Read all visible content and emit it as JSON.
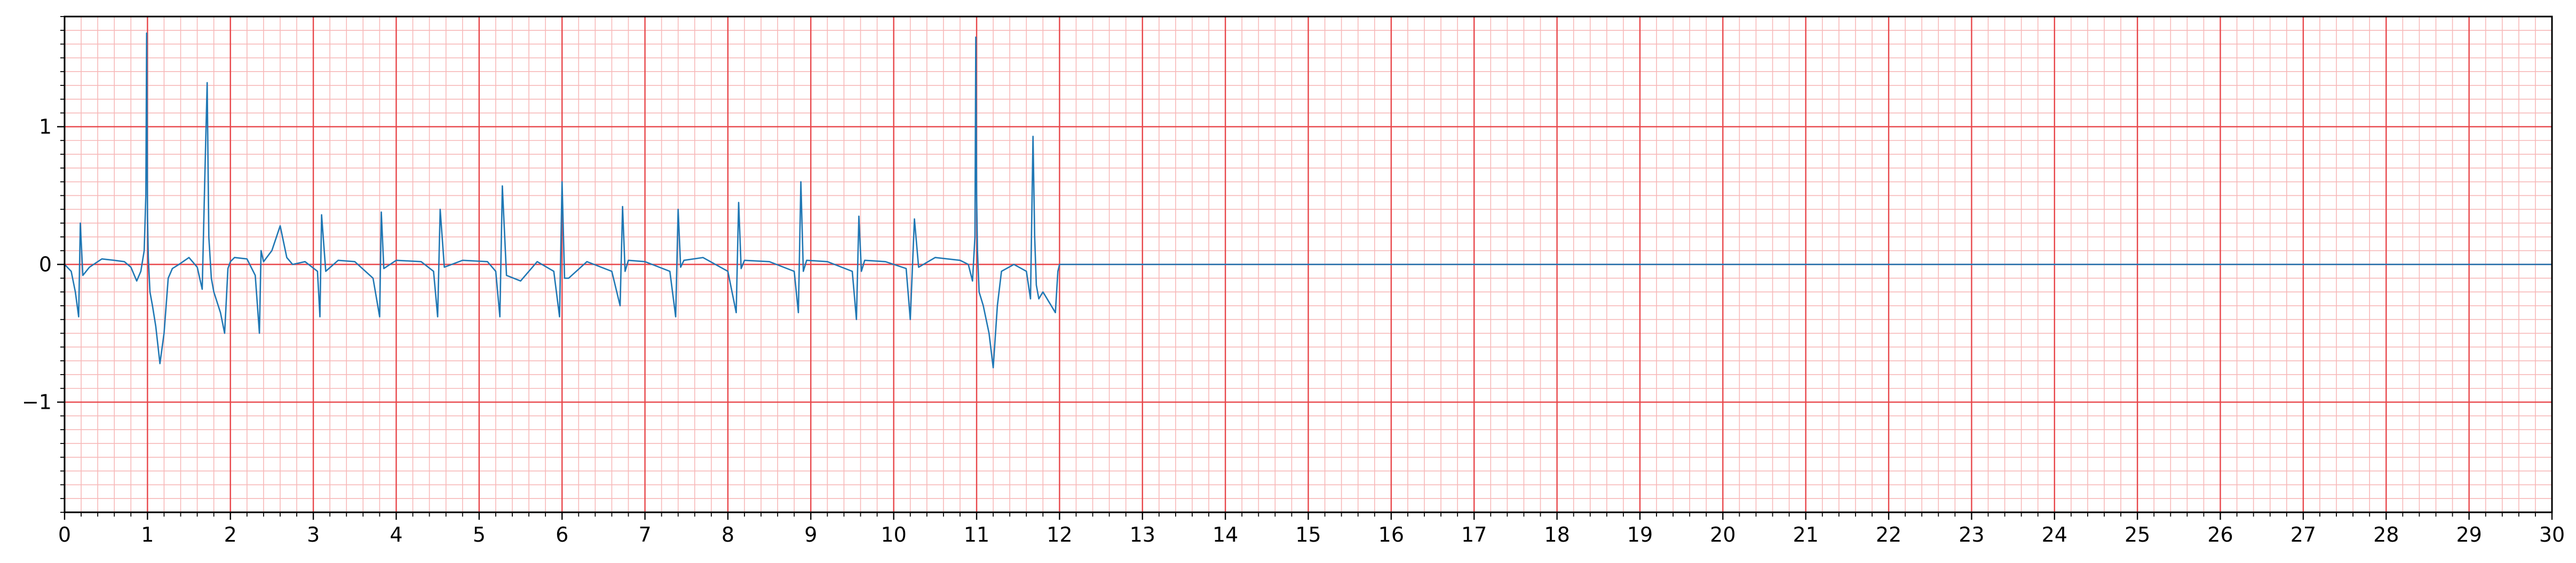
{
  "chart_data": {
    "type": "line",
    "title": "",
    "xlabel": "",
    "ylabel": "",
    "xlim": [
      0,
      30
    ],
    "ylim": [
      -1.8,
      1.8
    ],
    "x_ticks": [
      0,
      1,
      2,
      3,
      4,
      5,
      6,
      7,
      8,
      9,
      10,
      11,
      12,
      13,
      14,
      15,
      16,
      17,
      18,
      19,
      20,
      21,
      22,
      23,
      24,
      25,
      26,
      27,
      28,
      29,
      30
    ],
    "x_tick_labels": [
      "0",
      "1",
      "2",
      "3",
      "4",
      "5",
      "6",
      "7",
      "8",
      "9",
      "10",
      "11",
      "12",
      "13",
      "14",
      "15",
      "16",
      "17",
      "18",
      "19",
      "20",
      "21",
      "22",
      "23",
      "24",
      "25",
      "26",
      "27",
      "28",
      "29",
      "30"
    ],
    "y_ticks": [
      -1,
      0,
      1
    ],
    "y_tick_labels": [
      "−1",
      "0",
      "1"
    ],
    "grid": {
      "major": "on",
      "minor": "on",
      "major_color": "#e8464a",
      "minor_color": "#f7b8b8",
      "x_major_step": 1,
      "x_minor_step": 0.2,
      "y_major_step": 1,
      "y_minor_step": 0.1
    },
    "line_color": "#1f77b4",
    "series": [
      {
        "name": "",
        "x": [
          0,
          0.08,
          0.13,
          0.17,
          0.19,
          0.22,
          0.26,
          0.3,
          0.45,
          0.6,
          0.72,
          0.8,
          0.87,
          0.92,
          0.96,
          0.98,
          0.99,
          1.0,
          1.01,
          1.03,
          1.06,
          1.1,
          1.15,
          1.2,
          1.25,
          1.3,
          1.38,
          1.5,
          1.6,
          1.66,
          1.69,
          1.72,
          1.74,
          1.77,
          1.8,
          1.88,
          1.93,
          1.97,
          2.0,
          2.05,
          2.2,
          2.3,
          2.35,
          2.37,
          2.4,
          2.5,
          2.6,
          2.68,
          2.75,
          2.9,
          3.05,
          3.08,
          3.1,
          3.15,
          3.3,
          3.5,
          3.72,
          3.8,
          3.82,
          3.85,
          4.0,
          4.3,
          4.45,
          4.5,
          4.53,
          4.58,
          4.8,
          5.1,
          5.2,
          5.25,
          5.28,
          5.33,
          5.5,
          5.7,
          5.9,
          5.97,
          6.0,
          6.03,
          6.08,
          6.3,
          6.6,
          6.7,
          6.73,
          6.76,
          6.8,
          7.0,
          7.3,
          7.37,
          7.4,
          7.43,
          7.47,
          7.7,
          8.0,
          8.1,
          8.13,
          8.16,
          8.2,
          8.5,
          8.8,
          8.85,
          8.88,
          8.91,
          8.95,
          9.2,
          9.5,
          9.55,
          9.58,
          9.61,
          9.65,
          9.9,
          10.15,
          10.2,
          10.25,
          10.3,
          10.5,
          10.8,
          10.9,
          10.95,
          10.98,
          10.99,
          11.0,
          11.01,
          11.03,
          11.08,
          11.15,
          11.2,
          11.25,
          11.3,
          11.45,
          11.6,
          11.65,
          11.68,
          11.7,
          11.72,
          11.75,
          11.8,
          11.9,
          11.95,
          11.98,
          12.0,
          20,
          30
        ],
        "y": [
          0.0,
          -0.05,
          -0.2,
          -0.38,
          0.3,
          -0.08,
          -0.05,
          -0.02,
          0.04,
          0.03,
          0.02,
          -0.02,
          -0.12,
          -0.05,
          0.1,
          0.5,
          1.68,
          0.35,
          0.05,
          -0.2,
          -0.3,
          -0.45,
          -0.72,
          -0.5,
          -0.1,
          -0.03,
          0.0,
          0.05,
          -0.02,
          -0.18,
          0.6,
          1.32,
          0.2,
          -0.1,
          -0.2,
          -0.35,
          -0.5,
          -0.03,
          0.02,
          0.05,
          0.04,
          -0.08,
          -0.5,
          0.1,
          0.02,
          0.1,
          0.28,
          0.05,
          0.0,
          0.02,
          -0.05,
          -0.38,
          0.36,
          -0.05,
          0.03,
          0.02,
          -0.1,
          -0.38,
          0.38,
          -0.03,
          0.03,
          0.02,
          -0.05,
          -0.38,
          0.4,
          -0.02,
          0.03,
          0.02,
          -0.05,
          -0.38,
          0.57,
          -0.08,
          -0.12,
          0.02,
          -0.05,
          -0.38,
          0.6,
          -0.1,
          -0.1,
          0.02,
          -0.05,
          -0.3,
          0.42,
          -0.05,
          0.03,
          0.02,
          -0.05,
          -0.38,
          0.4,
          -0.02,
          0.03,
          0.05,
          -0.05,
          -0.35,
          0.45,
          -0.03,
          0.03,
          0.02,
          -0.05,
          -0.35,
          0.6,
          -0.05,
          0.03,
          0.02,
          -0.05,
          -0.4,
          0.35,
          -0.05,
          0.03,
          0.02,
          -0.03,
          -0.4,
          0.33,
          -0.02,
          0.05,
          0.03,
          0.0,
          -0.12,
          0.2,
          1.65,
          0.5,
          0.1,
          -0.2,
          -0.3,
          -0.5,
          -0.75,
          -0.3,
          -0.05,
          0.0,
          -0.05,
          -0.25,
          0.93,
          0.2,
          -0.15,
          -0.25,
          -0.2,
          -0.3,
          -0.35,
          -0.05,
          0.0,
          0.0,
          0.0
        ]
      }
    ]
  }
}
